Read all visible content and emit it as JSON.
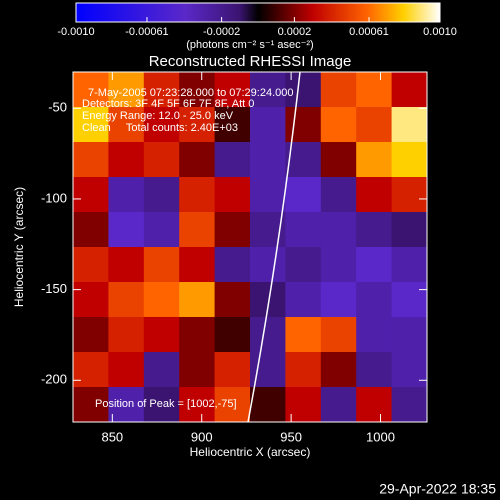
{
  "chart_data": {
    "type": "heatmap",
    "title": "Reconstructed RHESSI Image",
    "xlabel": "Heliocentric X (arcsec)",
    "ylabel": "Heliocentric Y (arcsec)",
    "xlim": [
      828,
      1026
    ],
    "ylim": [
      -223,
      -30
    ],
    "xticks": [
      850,
      900,
      950,
      1000
    ],
    "yticks": [
      -50,
      -100,
      -150,
      -200
    ],
    "annotations": [
      "7-May-2005 07:23:28.000 to 07:29:24.000",
      "Detectors: 3F 4F 5F 6F 7F 8F, Att 0",
      "Energy Range: 12.0 - 25.0 keV",
      "Clean     Total counts: 2.40E+03",
      "Position of Peak = [1002,-75]"
    ],
    "footer": "29-Apr-2022 18:35",
    "colorbar": {
      "label": "(photons cm⁻² s⁻¹ asec⁻²)",
      "lim": [
        -0.001,
        0.001
      ],
      "ticks": [
        {
          "value": -0.001,
          "label": "-0.0010"
        },
        -0.00061,
        -0.0002,
        0.0002,
        0.00061,
        {
          "value": 0.001,
          "label": "0.0010"
        }
      ]
    },
    "colorscale": [
      {
        "value": -0.001,
        "color": "#0000ff"
      },
      {
        "value": -0.0004,
        "color": "#5a28c8"
      },
      {
        "value": -0.0001,
        "color": "#3a1470"
      },
      {
        "value": 0,
        "color": "#000000"
      },
      {
        "value": 0.0003,
        "color": "#c00000"
      },
      {
        "value": 0.0006,
        "color": "#ff6400"
      },
      {
        "value": 0.0008,
        "color": "#ffd000"
      },
      {
        "value": 0.001,
        "color": "#ffffff"
      }
    ],
    "z": [
      [
        0.0006,
        0.0007,
        0.0004,
        0.0002,
        0.0003,
        -0.0002,
        -0.0001,
        0.0005,
        0.0006,
        0.0003
      ],
      [
        0.0008,
        0.0005,
        0.0003,
        0.0004,
        0.0001,
        -0.0003,
        0.0002,
        0.0006,
        0.0005,
        0.0009
      ],
      [
        0.0005,
        0.0003,
        0.0004,
        0.0002,
        -0.0002,
        -0.0003,
        -0.0002,
        0.0002,
        0.0007,
        0.0008
      ],
      [
        0.0003,
        -0.0003,
        -0.0002,
        0.0004,
        0.0003,
        -0.0003,
        -0.0004,
        -0.0002,
        0.0003,
        0.0004
      ],
      [
        0.0002,
        -0.0004,
        -0.0003,
        0.0005,
        0.0002,
        -0.0002,
        -0.0003,
        -0.0003,
        -0.0002,
        -0.0001
      ],
      [
        0.0004,
        0.0003,
        0.0005,
        0.0003,
        -0.0002,
        -0.0003,
        -0.0002,
        -0.0003,
        -0.0004,
        -0.0003
      ],
      [
        0.0003,
        0.0005,
        0.0006,
        0.0007,
        0.0002,
        -0.0001,
        -0.0003,
        -0.0004,
        -0.0003,
        -0.0004
      ],
      [
        0.0002,
        0.0004,
        0.0003,
        0.0002,
        0.0001,
        -0.0002,
        0.0006,
        0.0005,
        -0.0003,
        -0.0003
      ],
      [
        0.0004,
        0.0003,
        -0.0002,
        0.0002,
        0.0004,
        -0.0002,
        0.0004,
        0.0002,
        -0.0002,
        -0.0003
      ],
      [
        0.0002,
        -0.0003,
        -0.0001,
        0.0003,
        0.0005,
        0.0001,
        0.0003,
        -0.0002,
        0.0003,
        -0.0002
      ]
    ]
  }
}
